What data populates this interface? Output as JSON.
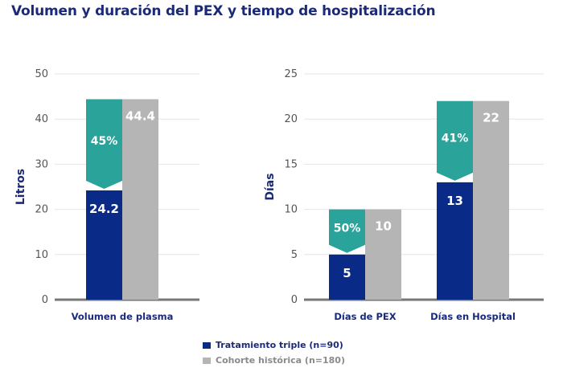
{
  "title": "Volumen y duración del PEX y tiempo de hospitalización",
  "colors": {
    "navy": "#0a2a87",
    "gray": "#b5b5b5",
    "teal": "#2aa39a",
    "axis": "#777777",
    "grid": "#e6e6e6",
    "title": "#1a2a78"
  },
  "legend": [
    {
      "label": "Tratamiento triple (n=90)",
      "color": "#0a2a87"
    },
    {
      "label": "Cohorte histórica (n=180)",
      "color": "#b5b5b5"
    }
  ],
  "chart_data": [
    {
      "type": "bar",
      "ylabel": "Litros",
      "ylim": [
        0,
        50
      ],
      "yticks": [
        "0",
        "10",
        "20",
        "30",
        "40",
        "50"
      ],
      "categories": [
        "Volumen de plasma"
      ],
      "series": [
        {
          "name": "Tratamiento triple (n=90)",
          "values": [
            24.2
          ],
          "labels": [
            "24.2"
          ]
        },
        {
          "name": "Cohorte histórica (n=180)",
          "values": [
            44.4
          ],
          "labels": [
            "44.4"
          ]
        }
      ],
      "reductions": [
        "45%"
      ]
    },
    {
      "type": "bar",
      "ylabel": "Días",
      "ylim": [
        0,
        25
      ],
      "yticks": [
        "0",
        "5",
        "10",
        "15",
        "20",
        "25"
      ],
      "categories": [
        "Días de PEX",
        "Días en Hospital"
      ],
      "series": [
        {
          "name": "Tratamiento triple (n=90)",
          "values": [
            5,
            13
          ],
          "labels": [
            "5",
            "13"
          ]
        },
        {
          "name": "Cohorte histórica (n=180)",
          "values": [
            10,
            22
          ],
          "labels": [
            "10",
            "22"
          ]
        }
      ],
      "reductions": [
        "50%",
        "41%"
      ]
    }
  ]
}
